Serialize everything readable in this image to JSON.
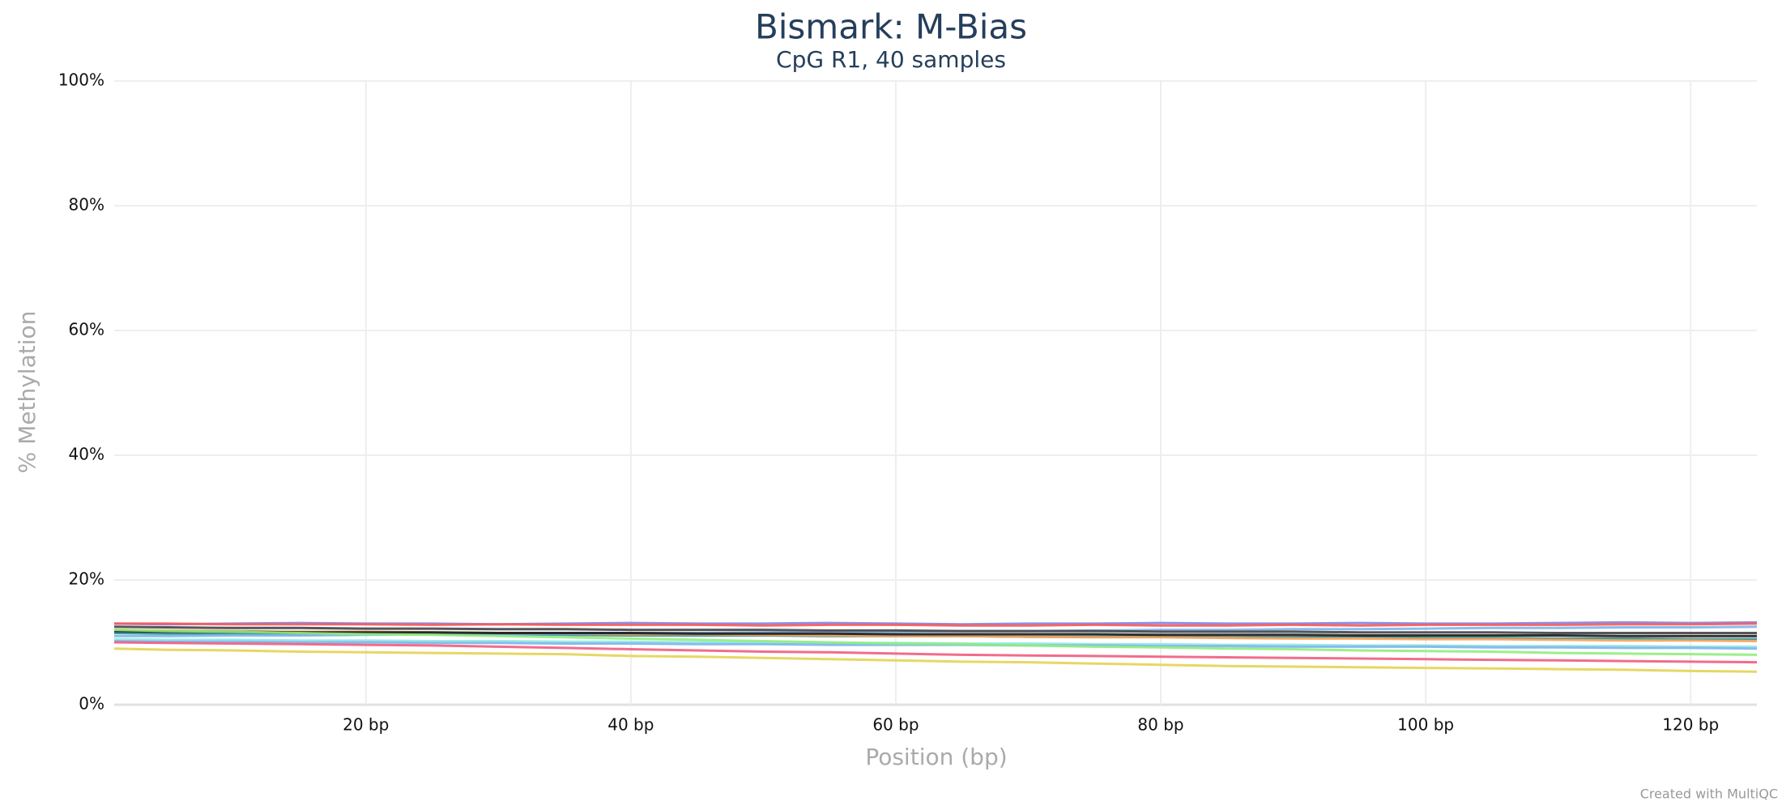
{
  "chart_data": {
    "type": "line",
    "title": "Bismark: M-Bias",
    "subtitle": "CpG R1, 40 samples",
    "x_label": "Position (bp)",
    "y_label": "% Methylation",
    "credit": "Created with MultiQC",
    "x": [
      1,
      5,
      10,
      15,
      20,
      25,
      30,
      35,
      40,
      45,
      50,
      55,
      60,
      65,
      70,
      75,
      80,
      85,
      90,
      95,
      100,
      105,
      110,
      115,
      120,
      125
    ],
    "xlim": [
      1,
      125
    ],
    "xticks": [
      {
        "value": 20,
        "label": "20 bp"
      },
      {
        "value": 40,
        "label": "40 bp"
      },
      {
        "value": 60,
        "label": "60 bp"
      },
      {
        "value": 80,
        "label": "80 bp"
      },
      {
        "value": 100,
        "label": "100 bp"
      },
      {
        "value": 120,
        "label": "120 bp"
      }
    ],
    "ylim": [
      0,
      100
    ],
    "yticks": [
      {
        "value": 0,
        "label": "0%"
      },
      {
        "value": 20,
        "label": "20%"
      },
      {
        "value": 40,
        "label": "40%"
      },
      {
        "value": 60,
        "label": "60%"
      },
      {
        "value": 80,
        "label": "80%"
      },
      {
        "value": 100,
        "label": "100%"
      }
    ],
    "grid": true,
    "series": [
      {
        "color": "#91e8e1",
        "values": [
          10.5,
          10.4,
          10.4,
          10.3,
          10.3,
          10.2,
          10.2,
          10.1,
          10.1,
          10.0,
          10.0,
          9.9,
          9.9,
          9.8,
          9.8,
          9.7,
          9.7,
          9.6,
          9.6,
          9.5,
          9.5,
          9.4,
          9.4,
          9.4,
          9.3,
          9.3
        ]
      },
      {
        "color": "#7cb5ec",
        "values": [
          10.2,
          10.1,
          10.1,
          10.0,
          10.0,
          9.9,
          9.9,
          9.8,
          9.8,
          9.7,
          9.7,
          9.6,
          9.6,
          9.6,
          9.5,
          9.5,
          9.4,
          9.4,
          9.3,
          9.3,
          9.3,
          9.2,
          9.2,
          9.1,
          9.1,
          9.0
        ]
      },
      {
        "color": "#2b908f",
        "values": [
          11.5,
          11.4,
          11.4,
          11.3,
          11.3,
          11.3,
          11.2,
          11.2,
          11.1,
          11.1,
          11.1,
          11.0,
          11.0,
          11.0,
          10.9,
          10.9,
          10.9,
          10.8,
          10.8,
          10.8,
          10.7,
          10.7,
          10.6,
          10.6,
          10.5,
          10.5
        ]
      },
      {
        "color": "#f7a35c",
        "values": [
          12.0,
          11.9,
          11.8,
          11.7,
          11.7,
          11.6,
          11.5,
          11.4,
          11.3,
          11.3,
          11.2,
          11.1,
          11.0,
          11.0,
          10.9,
          10.8,
          10.8,
          10.7,
          10.6,
          10.6,
          10.5,
          10.5,
          10.4,
          10.3,
          10.3,
          10.2
        ]
      },
      {
        "color": "#7cb5ec",
        "values": [
          11.0,
          11.0,
          11.1,
          11.1,
          11.2,
          11.3,
          11.3,
          11.4,
          11.5,
          11.5,
          11.6,
          11.7,
          11.7,
          11.8,
          11.8,
          11.9,
          12.0,
          12.0,
          12.1,
          12.1,
          12.2,
          12.3,
          12.3,
          12.4,
          12.4,
          12.5
        ]
      },
      {
        "color": "#8085e9",
        "values": [
          13.0,
          12.9,
          13.0,
          13.1,
          13.0,
          13.0,
          12.9,
          13.0,
          13.1,
          13.0,
          13.0,
          13.1,
          13.0,
          12.9,
          13.0,
          13.0,
          13.1,
          13.0,
          13.0,
          13.1,
          13.0,
          13.0,
          13.1,
          13.2,
          13.1,
          13.2
        ]
      },
      {
        "color": "#f45b5b",
        "values": [
          13.0,
          13.0,
          12.9,
          12.9,
          12.9,
          12.8,
          12.9,
          12.8,
          12.8,
          12.8,
          12.7,
          12.8,
          12.8,
          12.7,
          12.7,
          12.8,
          12.7,
          12.7,
          12.8,
          12.7,
          12.8,
          12.8,
          12.8,
          12.9,
          12.9,
          13.0
        ]
      },
      {
        "color": "#434348",
        "values": [
          12.5,
          12.4,
          12.3,
          12.3,
          12.2,
          12.2,
          12.1,
          12.1,
          12.0,
          12.0,
          12.0,
          11.9,
          11.9,
          11.8,
          11.8,
          11.8,
          11.7,
          11.7,
          11.7,
          11.6,
          11.6,
          11.6,
          11.5,
          11.5,
          11.5,
          11.5
        ]
      },
      {
        "color": "#1a1a1a",
        "values": [
          11.8,
          11.7,
          11.7,
          11.6,
          11.6,
          11.6,
          11.5,
          11.5,
          11.5,
          11.4,
          11.4,
          11.4,
          11.3,
          11.3,
          11.3,
          11.3,
          11.2,
          11.2,
          11.2,
          11.1,
          11.1,
          11.1,
          11.1,
          11.0,
          11.0,
          11.0
        ]
      },
      {
        "color": "#90ed7d",
        "values": [
          12.0,
          11.8,
          11.7,
          11.5,
          11.3,
          11.2,
          11.0,
          10.8,
          10.6,
          10.4,
          10.2,
          10.0,
          9.8,
          9.7,
          9.5,
          9.3,
          9.2,
          9.0,
          8.9,
          8.7,
          8.6,
          8.5,
          8.3,
          8.2,
          8.1,
          8.0
        ]
      },
      {
        "color": "#f15c80",
        "values": [
          10.0,
          9.9,
          9.8,
          9.7,
          9.6,
          9.5,
          9.3,
          9.1,
          8.9,
          8.7,
          8.5,
          8.4,
          8.2,
          8.0,
          7.9,
          7.8,
          7.7,
          7.6,
          7.5,
          7.4,
          7.3,
          7.2,
          7.1,
          7.0,
          6.9,
          6.8
        ]
      },
      {
        "color": "#e4d354",
        "values": [
          9.0,
          8.8,
          8.7,
          8.5,
          8.4,
          8.3,
          8.2,
          8.1,
          7.8,
          7.7,
          7.5,
          7.3,
          7.1,
          6.9,
          6.8,
          6.6,
          6.4,
          6.2,
          6.1,
          6.0,
          5.9,
          5.8,
          5.7,
          5.6,
          5.4,
          5.3
        ]
      }
    ]
  }
}
